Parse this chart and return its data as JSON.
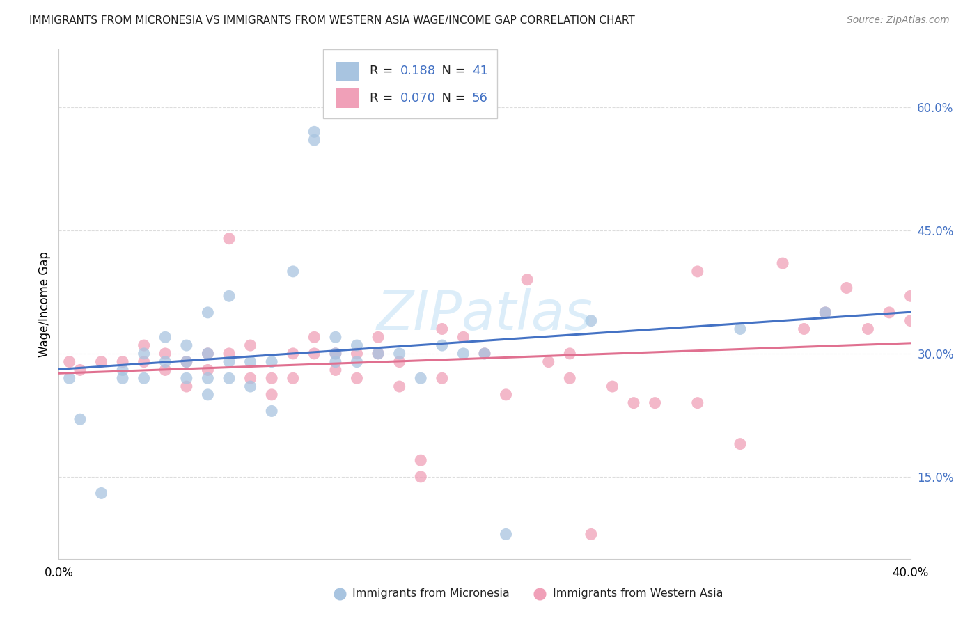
{
  "title": "IMMIGRANTS FROM MICRONESIA VS IMMIGRANTS FROM WESTERN ASIA WAGE/INCOME GAP CORRELATION CHART",
  "source": "Source: ZipAtlas.com",
  "ylabel": "Wage/Income Gap",
  "ytick_values": [
    0.15,
    0.3,
    0.45,
    0.6
  ],
  "xlim": [
    0.0,
    0.4
  ],
  "ylim": [
    0.05,
    0.67
  ],
  "legend_labels": [
    "Immigrants from Micronesia",
    "Immigrants from Western Asia"
  ],
  "micronesia_R": "0.188",
  "micronesia_N": "41",
  "western_asia_R": "0.070",
  "western_asia_N": "56",
  "micronesia_color": "#a8c4e0",
  "western_asia_color": "#f0a0b8",
  "micronesia_line_color": "#4472c4",
  "western_asia_line_color": "#e07090",
  "micronesia_scatter_x": [
    0.005,
    0.01,
    0.02,
    0.03,
    0.03,
    0.04,
    0.04,
    0.05,
    0.05,
    0.06,
    0.06,
    0.06,
    0.07,
    0.07,
    0.07,
    0.07,
    0.08,
    0.08,
    0.08,
    0.09,
    0.09,
    0.1,
    0.1,
    0.11,
    0.12,
    0.12,
    0.13,
    0.13,
    0.13,
    0.14,
    0.14,
    0.15,
    0.16,
    0.17,
    0.18,
    0.19,
    0.2,
    0.21,
    0.25,
    0.32,
    0.36
  ],
  "micronesia_scatter_y": [
    0.27,
    0.22,
    0.13,
    0.27,
    0.28,
    0.27,
    0.3,
    0.29,
    0.32,
    0.27,
    0.29,
    0.31,
    0.25,
    0.27,
    0.3,
    0.35,
    0.27,
    0.29,
    0.37,
    0.26,
    0.29,
    0.23,
    0.29,
    0.4,
    0.56,
    0.57,
    0.29,
    0.3,
    0.32,
    0.29,
    0.31,
    0.3,
    0.3,
    0.27,
    0.31,
    0.3,
    0.3,
    0.08,
    0.34,
    0.33,
    0.35
  ],
  "western_asia_scatter_x": [
    0.005,
    0.01,
    0.02,
    0.03,
    0.04,
    0.04,
    0.05,
    0.05,
    0.06,
    0.06,
    0.07,
    0.07,
    0.08,
    0.08,
    0.09,
    0.09,
    0.1,
    0.1,
    0.11,
    0.11,
    0.12,
    0.12,
    0.13,
    0.13,
    0.14,
    0.14,
    0.15,
    0.15,
    0.16,
    0.16,
    0.17,
    0.17,
    0.18,
    0.18,
    0.19,
    0.2,
    0.21,
    0.22,
    0.23,
    0.24,
    0.24,
    0.25,
    0.26,
    0.27,
    0.28,
    0.3,
    0.3,
    0.32,
    0.34,
    0.35,
    0.36,
    0.37,
    0.38,
    0.39,
    0.4,
    0.4
  ],
  "western_asia_scatter_y": [
    0.29,
    0.28,
    0.29,
    0.29,
    0.29,
    0.31,
    0.28,
    0.3,
    0.26,
    0.29,
    0.28,
    0.3,
    0.3,
    0.44,
    0.27,
    0.31,
    0.25,
    0.27,
    0.27,
    0.3,
    0.3,
    0.32,
    0.28,
    0.3,
    0.27,
    0.3,
    0.3,
    0.32,
    0.26,
    0.29,
    0.15,
    0.17,
    0.27,
    0.33,
    0.32,
    0.3,
    0.25,
    0.39,
    0.29,
    0.27,
    0.3,
    0.08,
    0.26,
    0.24,
    0.24,
    0.4,
    0.24,
    0.19,
    0.41,
    0.33,
    0.35,
    0.38,
    0.33,
    0.35,
    0.34,
    0.37
  ],
  "background_color": "#ffffff",
  "grid_color": "#dddddd",
  "watermark": "ZIPatlas"
}
